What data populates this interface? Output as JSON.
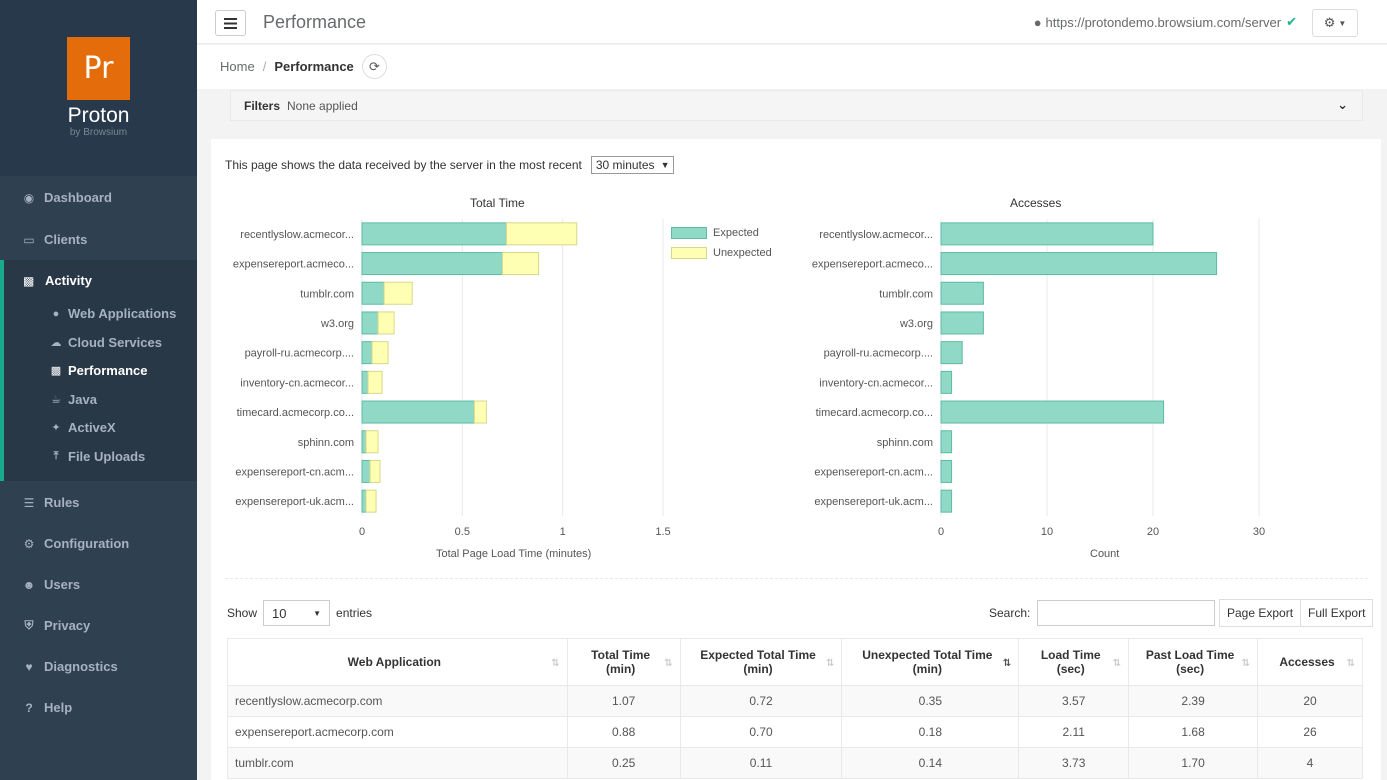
{
  "brand": {
    "logo_text": "Pr",
    "name": "Proton",
    "sub": "by Browsium"
  },
  "nav": {
    "dashboard": "Dashboard",
    "clients": "Clients",
    "activity": "Activity",
    "sub": {
      "web_applications": "Web Applications",
      "cloud_services": "Cloud Services",
      "performance": "Performance",
      "java": "Java",
      "activex": "ActiveX",
      "file_uploads": "File Uploads"
    },
    "rules": "Rules",
    "configuration": "Configuration",
    "users": "Users",
    "privacy": "Privacy",
    "diagnostics": "Diagnostics",
    "help": "Help"
  },
  "header": {
    "title": "Performance",
    "server_url": "https://protondemo.browsium.com/server"
  },
  "breadcrumb": {
    "home": "Home",
    "current": "Performance"
  },
  "filters": {
    "label": "Filters",
    "value": "None applied"
  },
  "intro": {
    "text": "This page shows the data received by the server in the most recent",
    "range": "30 minutes"
  },
  "colors": {
    "expected": "#8fd9c6",
    "unexpected": "#ffffb3",
    "expected_stroke": "#5cbca3",
    "unexpected_stroke": "#d8d88a"
  },
  "chart_data": [
    {
      "type": "bar",
      "orientation": "horizontal",
      "stacked": true,
      "title": "Total Time",
      "xlabel": "Total Page Load Time (minutes)",
      "xlim": [
        0,
        1.5
      ],
      "xticks": [
        "0",
        "0.5",
        "1",
        "1.5"
      ],
      "categories": [
        "recentlyslow.acmecor...",
        "expensereport.acmeco...",
        "tumblr.com",
        "w3.org",
        "payroll-ru.acmecorp....",
        "inventory-cn.acmecor...",
        "timecard.acmecorp.co...",
        "sphinn.com",
        "expensereport-cn.acm...",
        "expensereport-uk.acm..."
      ],
      "series": [
        {
          "name": "Expected",
          "values": [
            0.72,
            0.7,
            0.11,
            0.08,
            0.05,
            0.03,
            0.56,
            0.02,
            0.04,
            0.02
          ]
        },
        {
          "name": "Unexpected",
          "values": [
            0.35,
            0.18,
            0.14,
            0.08,
            0.08,
            0.07,
            0.06,
            0.06,
            0.05,
            0.05
          ]
        }
      ],
      "legend_position": "right"
    },
    {
      "type": "bar",
      "orientation": "horizontal",
      "title": "Accesses",
      "xlabel": "Count",
      "xlim": [
        0,
        30
      ],
      "xticks": [
        "0",
        "10",
        "20",
        "30"
      ],
      "categories": [
        "recentlyslow.acmecor...",
        "expensereport.acmeco...",
        "tumblr.com",
        "w3.org",
        "payroll-ru.acmecorp....",
        "inventory-cn.acmecor...",
        "timecard.acmecorp.co...",
        "sphinn.com",
        "expensereport-cn.acm...",
        "expensereport-uk.acm..."
      ],
      "values": [
        20,
        26,
        4,
        4,
        2,
        1,
        21,
        1,
        1,
        1
      ]
    }
  ],
  "table_controls": {
    "show": "Show",
    "entries_value": "10",
    "entries": "entries",
    "search_label": "Search:",
    "page_export": "Page Export",
    "full_export": "Full Export"
  },
  "table": {
    "columns": [
      "Web Application",
      "Total Time (min)",
      "Expected Total Time (min)",
      "Unexpected Total Time (min)",
      "Load Time (sec)",
      "Past Load Time (sec)",
      "Accesses"
    ],
    "rows": [
      [
        "recentlyslow.acmecorp.com",
        "1.07",
        "0.72",
        "0.35",
        "3.57",
        "2.39",
        "20"
      ],
      [
        "expensereport.acmecorp.com",
        "0.88",
        "0.70",
        "0.18",
        "2.11",
        "1.68",
        "26"
      ],
      [
        "tumblr.com",
        "0.25",
        "0.11",
        "0.14",
        "3.73",
        "1.70",
        "4"
      ]
    ]
  }
}
